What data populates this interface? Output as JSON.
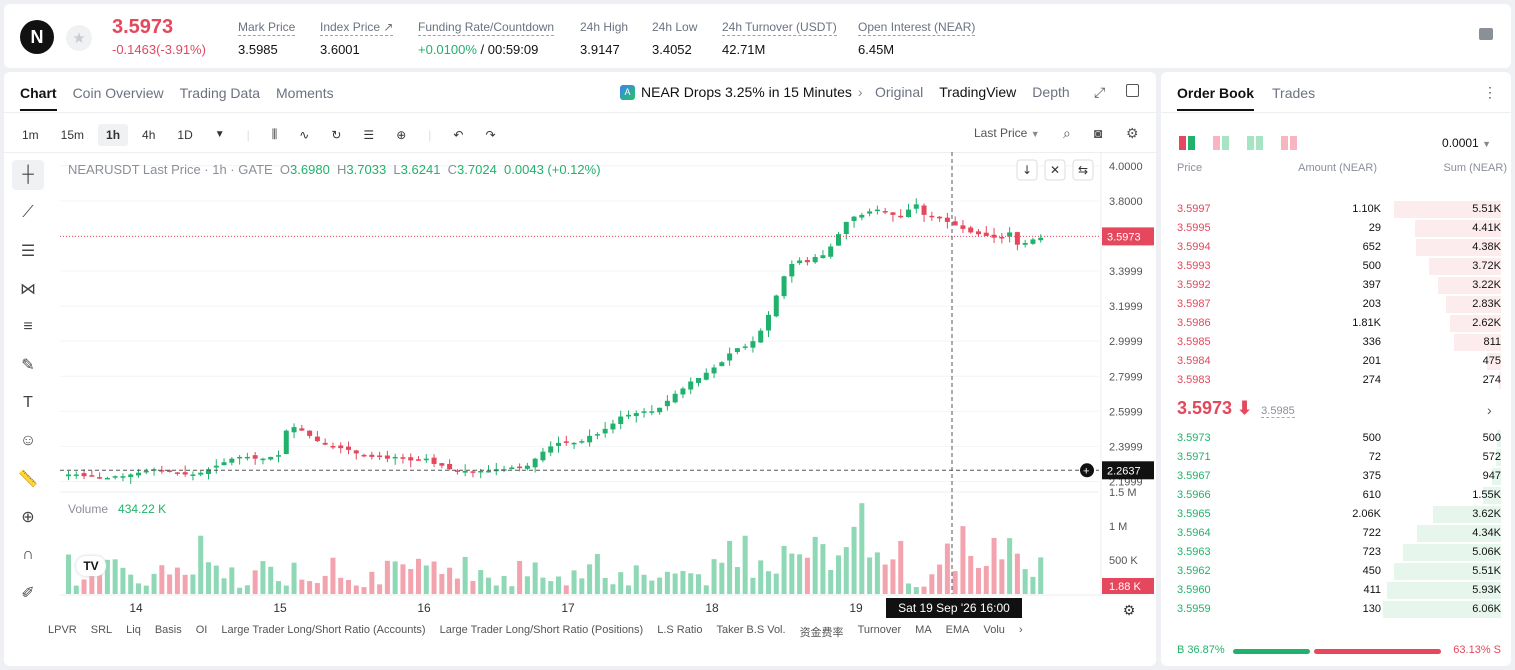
{
  "header": {
    "logo": "N",
    "last_price": "3.5973",
    "change": "-0.1463(-3.91%)",
    "stats": [
      {
        "label": "Mark Price",
        "value": "3.5985"
      },
      {
        "label": "Index Price ↗",
        "value": "3.6001"
      },
      {
        "label": "Funding Rate/Countdown",
        "value_green": "+0.0100%",
        "value": " / 00:59:09"
      },
      {
        "label": "24h High",
        "value": "3.9147"
      },
      {
        "label": "24h Low",
        "value": "3.4052"
      },
      {
        "label": "24h Turnover (USDT)",
        "value": "42.71M"
      },
      {
        "label": "Open Interest (NEAR)",
        "value": "6.45M"
      }
    ]
  },
  "chart_panel": {
    "tabs": [
      "Chart",
      "Coin Overview",
      "Trading Data",
      "Moments"
    ],
    "news": "NEAR Drops 3.25% in 15 Minutes",
    "views": [
      "Original",
      "TradingView",
      "Depth"
    ],
    "timeframes": [
      "1m",
      "15m",
      "1h",
      "4h",
      "1D"
    ],
    "selected_timeframe": "1h",
    "price_type": "Last Price",
    "ohlc": {
      "symbol": "NEARUSDT Last Price · 1h · GATE",
      "o": "3.6980",
      "h": "3.7033",
      "l": "3.6241",
      "c": "3.7024",
      "chg": "0.0043 (+0.12%)"
    },
    "volume_label": "Volume",
    "volume_value": "434.22 K",
    "crosshair_date": "Sat 19 Sep '26   16:00",
    "crosshair_price": "2.2637",
    "current_price_tag": "3.5973",
    "current_volume_tag": "1.88 K",
    "indicators": [
      "LPVR",
      "SRL",
      "Liq",
      "Basis",
      "OI",
      "Large Trader Long/Short Ratio (Accounts)",
      "Large Trader Long/Short Ratio (Positions)",
      "L.S Ratio",
      "Taker B.S Vol.",
      "资金费率",
      "Turnover",
      "MA",
      "EMA",
      "Volu"
    ]
  },
  "chart_data": {
    "type": "candlestick",
    "title": "NEARUSDT Last Price · 1h · GATE",
    "x_ticks": [
      "14",
      "15",
      "16",
      "17",
      "18",
      "19"
    ],
    "y_ticks": [
      "4.0000",
      "3.8000",
      "3.5999",
      "3.3999",
      "3.1999",
      "2.9999",
      "2.7999",
      "2.5999",
      "2.3999",
      "2.1999"
    ],
    "volume_ticks": [
      "1.5 M",
      "1 M",
      "500 K"
    ],
    "ylim": [
      2.14,
      4.05
    ],
    "trend_closes": [
      2.24,
      2.24,
      2.23,
      2.23,
      2.22,
      2.22,
      2.23,
      2.23,
      2.24,
      2.25,
      2.26,
      2.27,
      2.26,
      2.26,
      2.25,
      2.24,
      2.24,
      2.25,
      2.27,
      2.29,
      2.31,
      2.33,
      2.34,
      2.34,
      2.33,
      2.33,
      2.34,
      2.35,
      2.49,
      2.51,
      2.49,
      2.46,
      2.43,
      2.41,
      2.4,
      2.39,
      2.38,
      2.36,
      2.35,
      2.34,
      2.34,
      2.33,
      2.34,
      2.33,
      2.32,
      2.32,
      2.33,
      2.3,
      2.29,
      2.27,
      2.26,
      2.26,
      2.25,
      2.26,
      2.26,
      2.27,
      2.27,
      2.28,
      2.28,
      2.29,
      2.33,
      2.37,
      2.4,
      2.42,
      2.42,
      2.42,
      2.43,
      2.46,
      2.47,
      2.5,
      2.53,
      2.57,
      2.58,
      2.59,
      2.6,
      2.6,
      2.62,
      2.66,
      2.7,
      2.73,
      2.77,
      2.79,
      2.82,
      2.85,
      2.88,
      2.93,
      2.96,
      2.97,
      3.0,
      3.06,
      3.15,
      3.26,
      3.37,
      3.44,
      3.46,
      3.45,
      3.48,
      3.49,
      3.54,
      3.61,
      3.68,
      3.71,
      3.72,
      3.74,
      3.75,
      3.74,
      3.72,
      3.71,
      3.75,
      3.78,
      3.72,
      3.71,
      3.7,
      3.68,
      3.66,
      3.64,
      3.62,
      3.61,
      3.6,
      3.59,
      3.59,
      3.62,
      3.55,
      3.56,
      3.58,
      3.59
    ],
    "volume_scale_max": 1500000
  },
  "order_book": {
    "tabs": [
      "Order Book",
      "Trades"
    ],
    "precision": "0.0001",
    "headers": [
      "Price",
      "Amount (NEAR)",
      "Sum (NEAR)"
    ],
    "asks": [
      {
        "price": "3.5997",
        "amount": "1.10K",
        "sum": "5.51K",
        "depth": 0.91
      },
      {
        "price": "3.5995",
        "amount": "29",
        "sum": "4.41K",
        "depth": 0.73
      },
      {
        "price": "3.5994",
        "amount": "652",
        "sum": "4.38K",
        "depth": 0.72
      },
      {
        "price": "3.5993",
        "amount": "500",
        "sum": "3.72K",
        "depth": 0.61
      },
      {
        "price": "3.5992",
        "amount": "397",
        "sum": "3.22K",
        "depth": 0.53
      },
      {
        "price": "3.5987",
        "amount": "203",
        "sum": "2.83K",
        "depth": 0.47
      },
      {
        "price": "3.5986",
        "amount": "1.81K",
        "sum": "2.62K",
        "depth": 0.43
      },
      {
        "price": "3.5985",
        "amount": "336",
        "sum": "811",
        "depth": 0.4
      },
      {
        "price": "3.5984",
        "amount": "201",
        "sum": "475",
        "depth": 0.12
      },
      {
        "price": "3.5983",
        "amount": "274",
        "sum": "274",
        "depth": 0.02
      }
    ],
    "mid_price": "3.5973 ⬇",
    "mark_price": "3.5985",
    "bids": [
      {
        "price": "3.5973",
        "amount": "500",
        "sum": "500",
        "depth": 0.03
      },
      {
        "price": "3.5971",
        "amount": "72",
        "sum": "572",
        "depth": 0.04
      },
      {
        "price": "3.5967",
        "amount": "375",
        "sum": "947",
        "depth": 0.08
      },
      {
        "price": "3.5966",
        "amount": "610",
        "sum": "1.55K",
        "depth": 0.15
      },
      {
        "price": "3.5965",
        "amount": "2.06K",
        "sum": "3.62K",
        "depth": 0.58
      },
      {
        "price": "3.5964",
        "amount": "722",
        "sum": "4.34K",
        "depth": 0.71
      },
      {
        "price": "3.5963",
        "amount": "723",
        "sum": "5.06K",
        "depth": 0.83
      },
      {
        "price": "3.5962",
        "amount": "450",
        "sum": "5.51K",
        "depth": 0.91
      },
      {
        "price": "3.5960",
        "amount": "411",
        "sum": "5.93K",
        "depth": 0.97
      },
      {
        "price": "3.5959",
        "amount": "130",
        "sum": "6.06K",
        "depth": 1.0
      }
    ],
    "buy_ratio": "B 36.87%",
    "sell_ratio": "63.13% S",
    "buy_fraction": 0.3687
  },
  "colors": {
    "up": "#20b26c",
    "down": "#e5475c"
  }
}
